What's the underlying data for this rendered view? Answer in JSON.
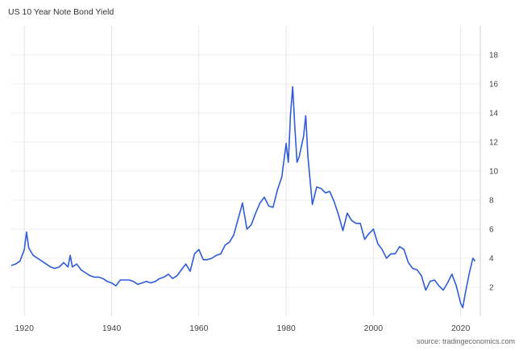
{
  "chart_data": {
    "type": "line",
    "title": "US 10 Year Note Bond Yield",
    "source": "source: tradingeconomics.com",
    "xlabel": "",
    "ylabel": "",
    "x_ticks": [
      "1920",
      "1940",
      "1960",
      "1980",
      "2000",
      "2020"
    ],
    "y_ticks": [
      "2",
      "4",
      "6",
      "8",
      "10",
      "12",
      "14",
      "16",
      "18"
    ],
    "xlim": [
      1917,
      2024.5
    ],
    "ylim": [
      0,
      20
    ],
    "grid": true,
    "y_axis_side": "right",
    "line_color": "#2e5bd8",
    "series": [
      {
        "x": [
          1917.0,
          1918.0,
          1919.0,
          1920.0,
          1920.5,
          1921.0,
          1922.0,
          1923.0,
          1924.0,
          1925.0,
          1926.0,
          1927.0,
          1928.0,
          1929.0,
          1930.0,
          1930.5,
          1931.0,
          1932.0,
          1933.0,
          1934.0,
          1935.0,
          1936.0,
          1937.0,
          1938.0,
          1939.0,
          1940.0,
          1941.0,
          1942.0,
          1943.0,
          1944.0,
          1945.0,
          1946.0,
          1947.0,
          1948.0,
          1949.0,
          1950.0,
          1951.0,
          1952.0,
          1953.0,
          1954.0,
          1955.0,
          1956.0,
          1957.0,
          1958.0,
          1959.0,
          1960.0,
          1961.0,
          1962.0,
          1963.0,
          1964.0,
          1965.0,
          1966.0,
          1967.0,
          1968.0,
          1969.0,
          1970.0,
          1971.0,
          1972.0,
          1973.0,
          1974.0,
          1975.0,
          1976.0,
          1977.0,
          1978.0,
          1979.0,
          1980.0,
          1980.5,
          1981.0,
          1981.5,
          1982.0,
          1982.5,
          1983.0,
          1984.0,
          1984.5,
          1985.0,
          1986.0,
          1987.0,
          1988.0,
          1989.0,
          1990.0,
          1991.0,
          1992.0,
          1993.0,
          1994.0,
          1995.0,
          1996.0,
          1997.0,
          1998.0,
          1999.0,
          2000.0,
          2001.0,
          2002.0,
          2003.0,
          2004.0,
          2005.0,
          2006.0,
          2007.0,
          2008.0,
          2009.0,
          2010.0,
          2011.0,
          2012.0,
          2013.0,
          2014.0,
          2015.0,
          2016.0,
          2017.0,
          2018.0,
          2019.0,
          2020.0,
          2020.5,
          2021.0,
          2022.0,
          2022.8,
          2023.3
        ],
        "y": [
          3.5,
          3.6,
          3.8,
          4.6,
          5.8,
          4.7,
          4.2,
          4.0,
          3.8,
          3.6,
          3.4,
          3.3,
          3.4,
          3.7,
          3.4,
          4.2,
          3.4,
          3.6,
          3.2,
          3.0,
          2.8,
          2.7,
          2.7,
          2.6,
          2.4,
          2.3,
          2.1,
          2.5,
          2.5,
          2.5,
          2.4,
          2.2,
          2.3,
          2.4,
          2.3,
          2.4,
          2.6,
          2.7,
          2.9,
          2.6,
          2.8,
          3.2,
          3.6,
          3.1,
          4.3,
          4.6,
          3.9,
          3.9,
          4.0,
          4.2,
          4.3,
          4.9,
          5.1,
          5.6,
          6.7,
          7.8,
          6.0,
          6.3,
          7.1,
          7.8,
          8.2,
          7.6,
          7.5,
          8.7,
          9.6,
          11.9,
          10.6,
          13.9,
          15.8,
          13.0,
          10.6,
          11.0,
          12.4,
          13.8,
          11.0,
          7.7,
          8.9,
          8.8,
          8.5,
          8.6,
          7.9,
          7.0,
          5.9,
          7.1,
          6.6,
          6.4,
          6.4,
          5.3,
          5.7,
          6.0,
          5.0,
          4.6,
          4.0,
          4.3,
          4.3,
          4.8,
          4.6,
          3.7,
          3.3,
          3.2,
          2.8,
          1.8,
          2.4,
          2.5,
          2.1,
          1.8,
          2.3,
          2.9,
          2.1,
          0.9,
          0.6,
          1.5,
          3.0,
          4.0,
          3.8
        ]
      }
    ]
  }
}
